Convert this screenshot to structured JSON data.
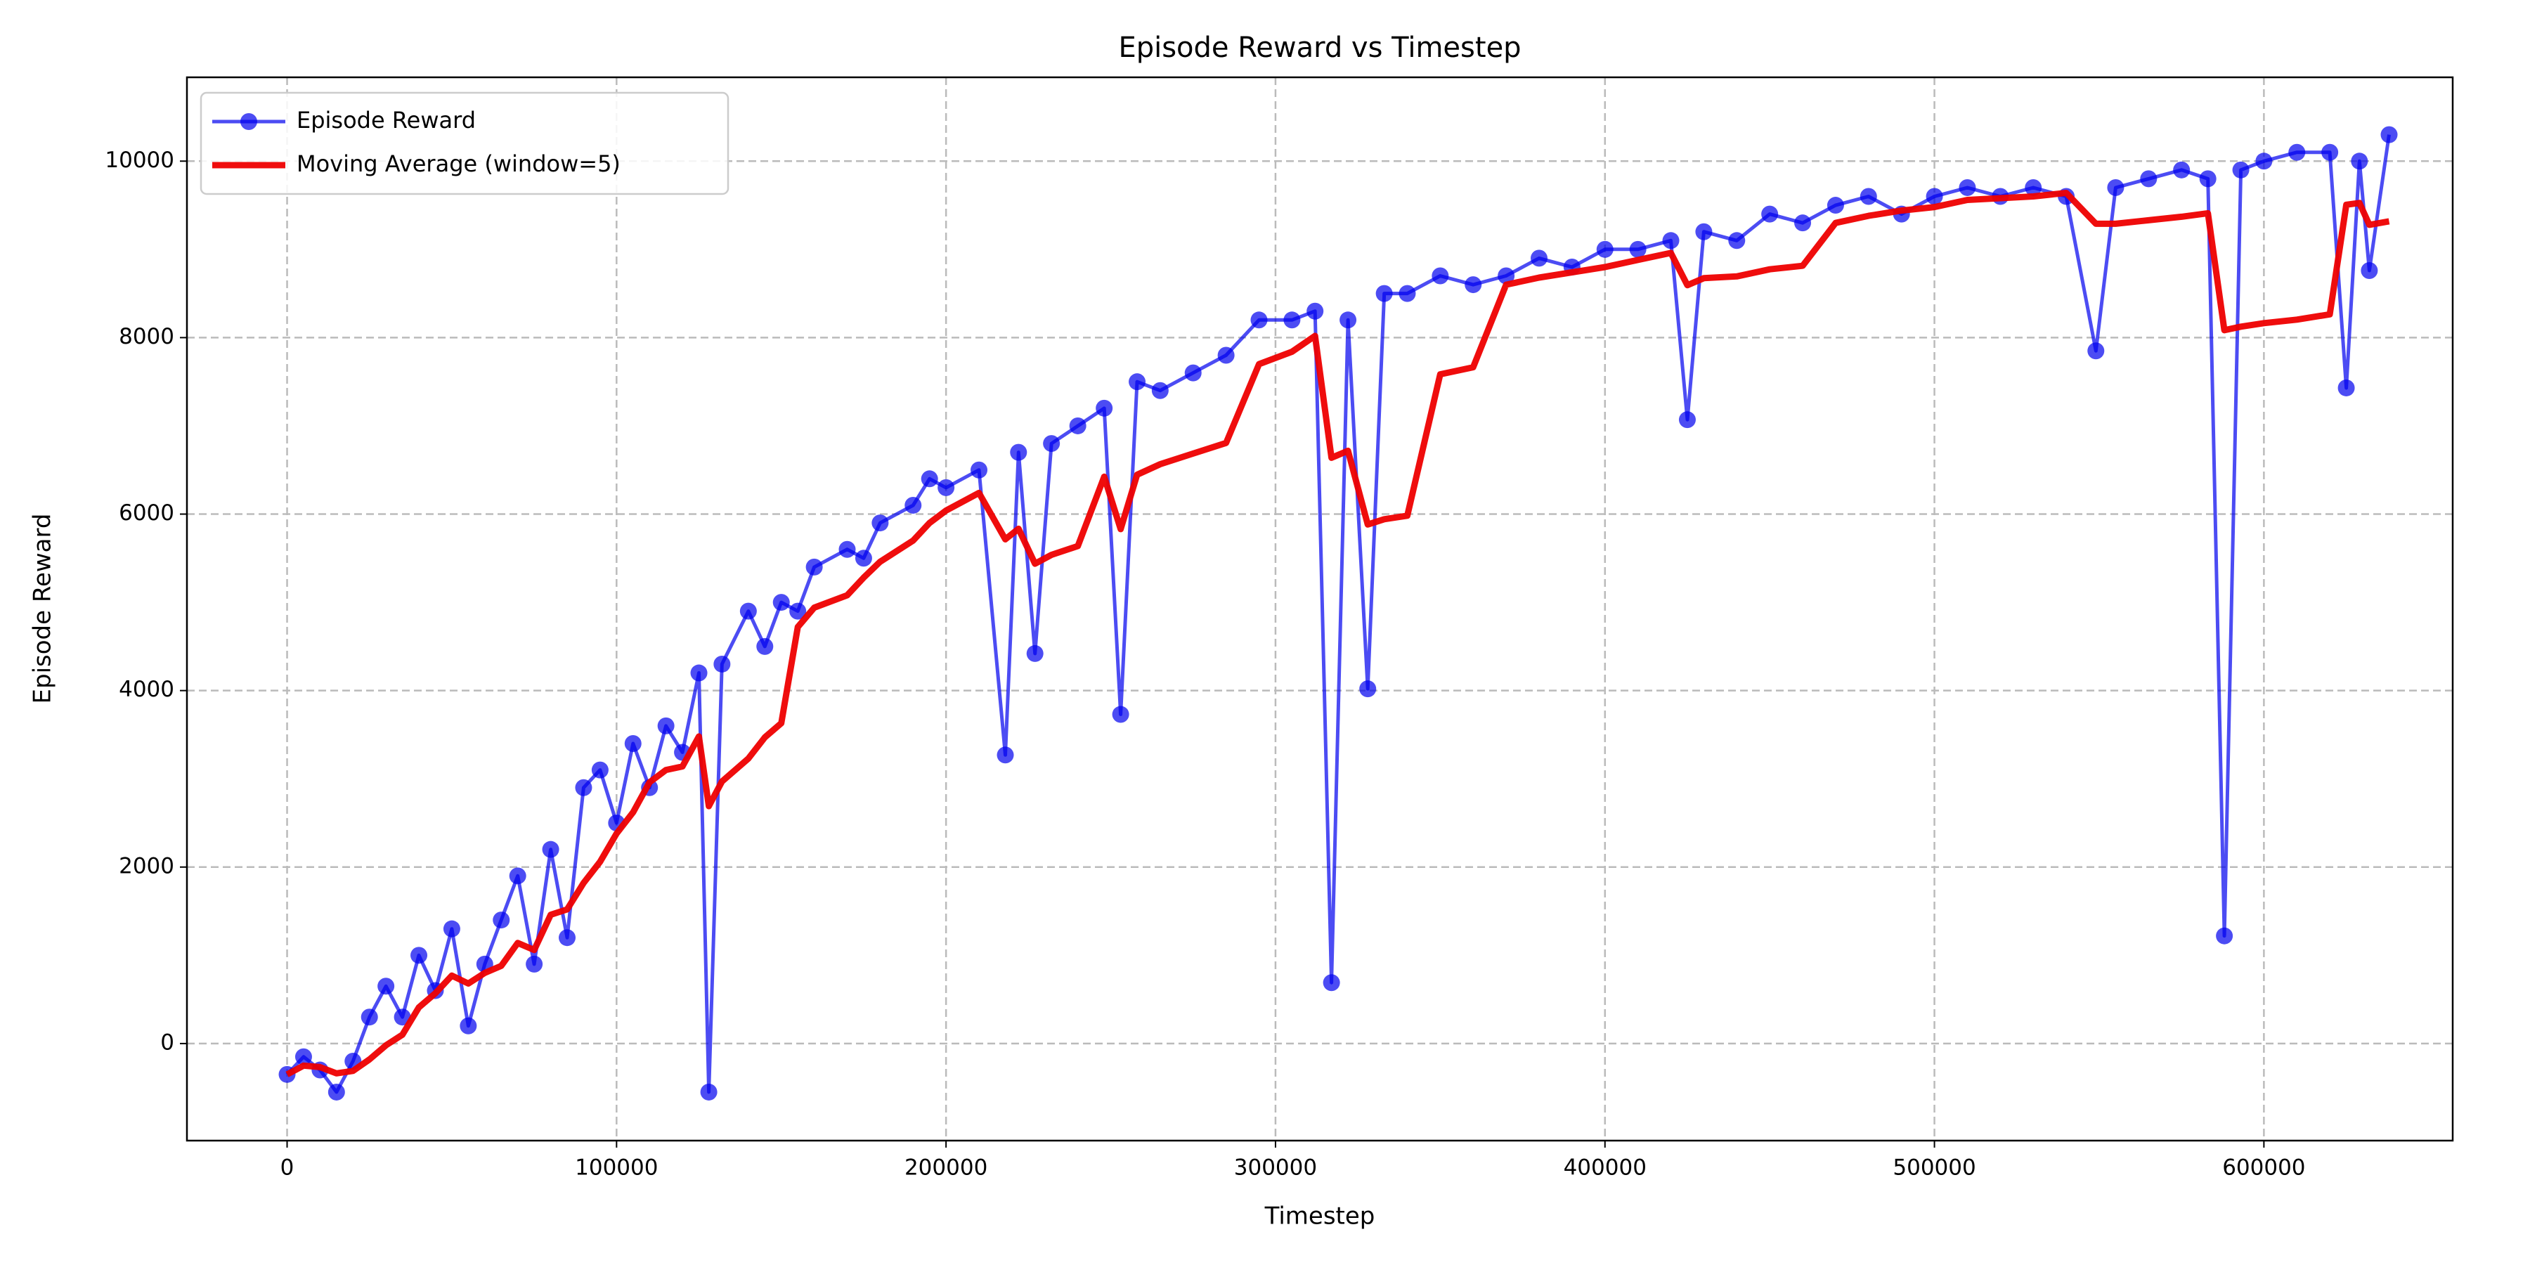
{
  "chart_data": {
    "type": "line",
    "title": "Episode Reward vs Timestep",
    "x_label": "Timestep",
    "y_label": "Episode Reward",
    "x": [
      0,
      5000,
      10000,
      15000,
      20000,
      25000,
      30000,
      35000,
      40000,
      45000,
      50000,
      55000,
      60000,
      65000,
      70000,
      75000,
      80000,
      85000,
      90000,
      95000,
      100000,
      105000,
      110000,
      115000,
      120000,
      125000,
      128000,
      132000,
      140000,
      145000,
      150000,
      155000,
      160000,
      170000,
      175000,
      180000,
      190000,
      195000,
      200000,
      210000,
      218000,
      222000,
      227000,
      232000,
      240000,
      248000,
      253000,
      258000,
      265000,
      275000,
      285000,
      295000,
      305000,
      312000,
      317000,
      322000,
      328000,
      333000,
      340000,
      350000,
      360000,
      370000,
      380000,
      390000,
      400000,
      410000,
      420000,
      425000,
      430000,
      440000,
      450000,
      460000,
      470000,
      480000,
      490000,
      500000,
      510000,
      520000,
      530000,
      540000,
      549000,
      555000,
      565000,
      575000,
      583000,
      588000,
      593000,
      600000,
      610000,
      620000,
      625000,
      629000,
      632000,
      638000
    ],
    "series": [
      {
        "name": "Episode Reward",
        "color": "#0000ee",
        "marker": true,
        "values": [
          -350,
          -150,
          -300,
          -550,
          -200,
          300,
          650,
          300,
          1000,
          600,
          1300,
          200,
          900,
          1400,
          1900,
          900,
          2200,
          1200,
          2900,
          3100,
          2500,
          3400,
          2900,
          3600,
          3300,
          4200,
          -550,
          4300,
          4900,
          4500,
          5000,
          4900,
          5400,
          5600,
          5500,
          5900,
          6100,
          6400,
          6300,
          6500,
          3270,
          6700,
          4420,
          6800,
          7000,
          7200,
          3730,
          7500,
          7400,
          7600,
          7800,
          8200,
          8200,
          8300,
          690,
          8200,
          4020,
          8500,
          8500,
          8700,
          8600,
          8700,
          8900,
          8800,
          9000,
          9000,
          9100,
          7070,
          9200,
          9100,
          9400,
          9300,
          9500,
          9600,
          9400,
          9600,
          9700,
          9600,
          9700,
          9600,
          7850,
          9700,
          9800,
          9900,
          9800,
          1220,
          9900,
          10000,
          10100,
          10100,
          7430,
          10000,
          8760,
          10300
        ]
      },
      {
        "name": "Moving Average (window=5)",
        "color": "#ee0000",
        "marker": false,
        "values": [
          -350,
          -250,
          -267,
          -338,
          -310,
          -180,
          -20,
          100,
          410,
          570,
          770,
          680,
          800,
          880,
          1140,
          1060,
          1460,
          1520,
          1820,
          2060,
          2380,
          2620,
          2960,
          3100,
          3140,
          3480,
          2690,
          2970,
          3230,
          3470,
          3630,
          4720,
          4940,
          5080,
          5280,
          5460,
          5700,
          5900,
          6040,
          6240,
          5714,
          5834,
          5438,
          5538,
          5638,
          6424,
          5830,
          6446,
          6566,
          6686,
          6806,
          7700,
          7840,
          8020,
          6638,
          6718,
          5882,
          5942,
          5982,
          7584,
          7664,
          8600,
          8680,
          8740,
          8800,
          8880,
          8960,
          8594,
          8674,
          8694,
          8774,
          8814,
          9300,
          9380,
          9440,
          9480,
          9560,
          9580,
          9600,
          9640,
          9290,
          9290,
          9330,
          9370,
          9410,
          8084,
          8124,
          8164,
          8204,
          8264,
          9506,
          9526,
          9278,
          9318
        ]
      }
    ],
    "xlim": [
      -30400,
      657300
    ],
    "ylim": [
      -1100,
      10950
    ],
    "xticks": [
      0,
      100000,
      200000,
      300000,
      400000,
      500000,
      600000
    ],
    "yticks": [
      0,
      2000,
      4000,
      6000,
      8000,
      10000
    ],
    "grid": true,
    "legend": "upper left"
  }
}
